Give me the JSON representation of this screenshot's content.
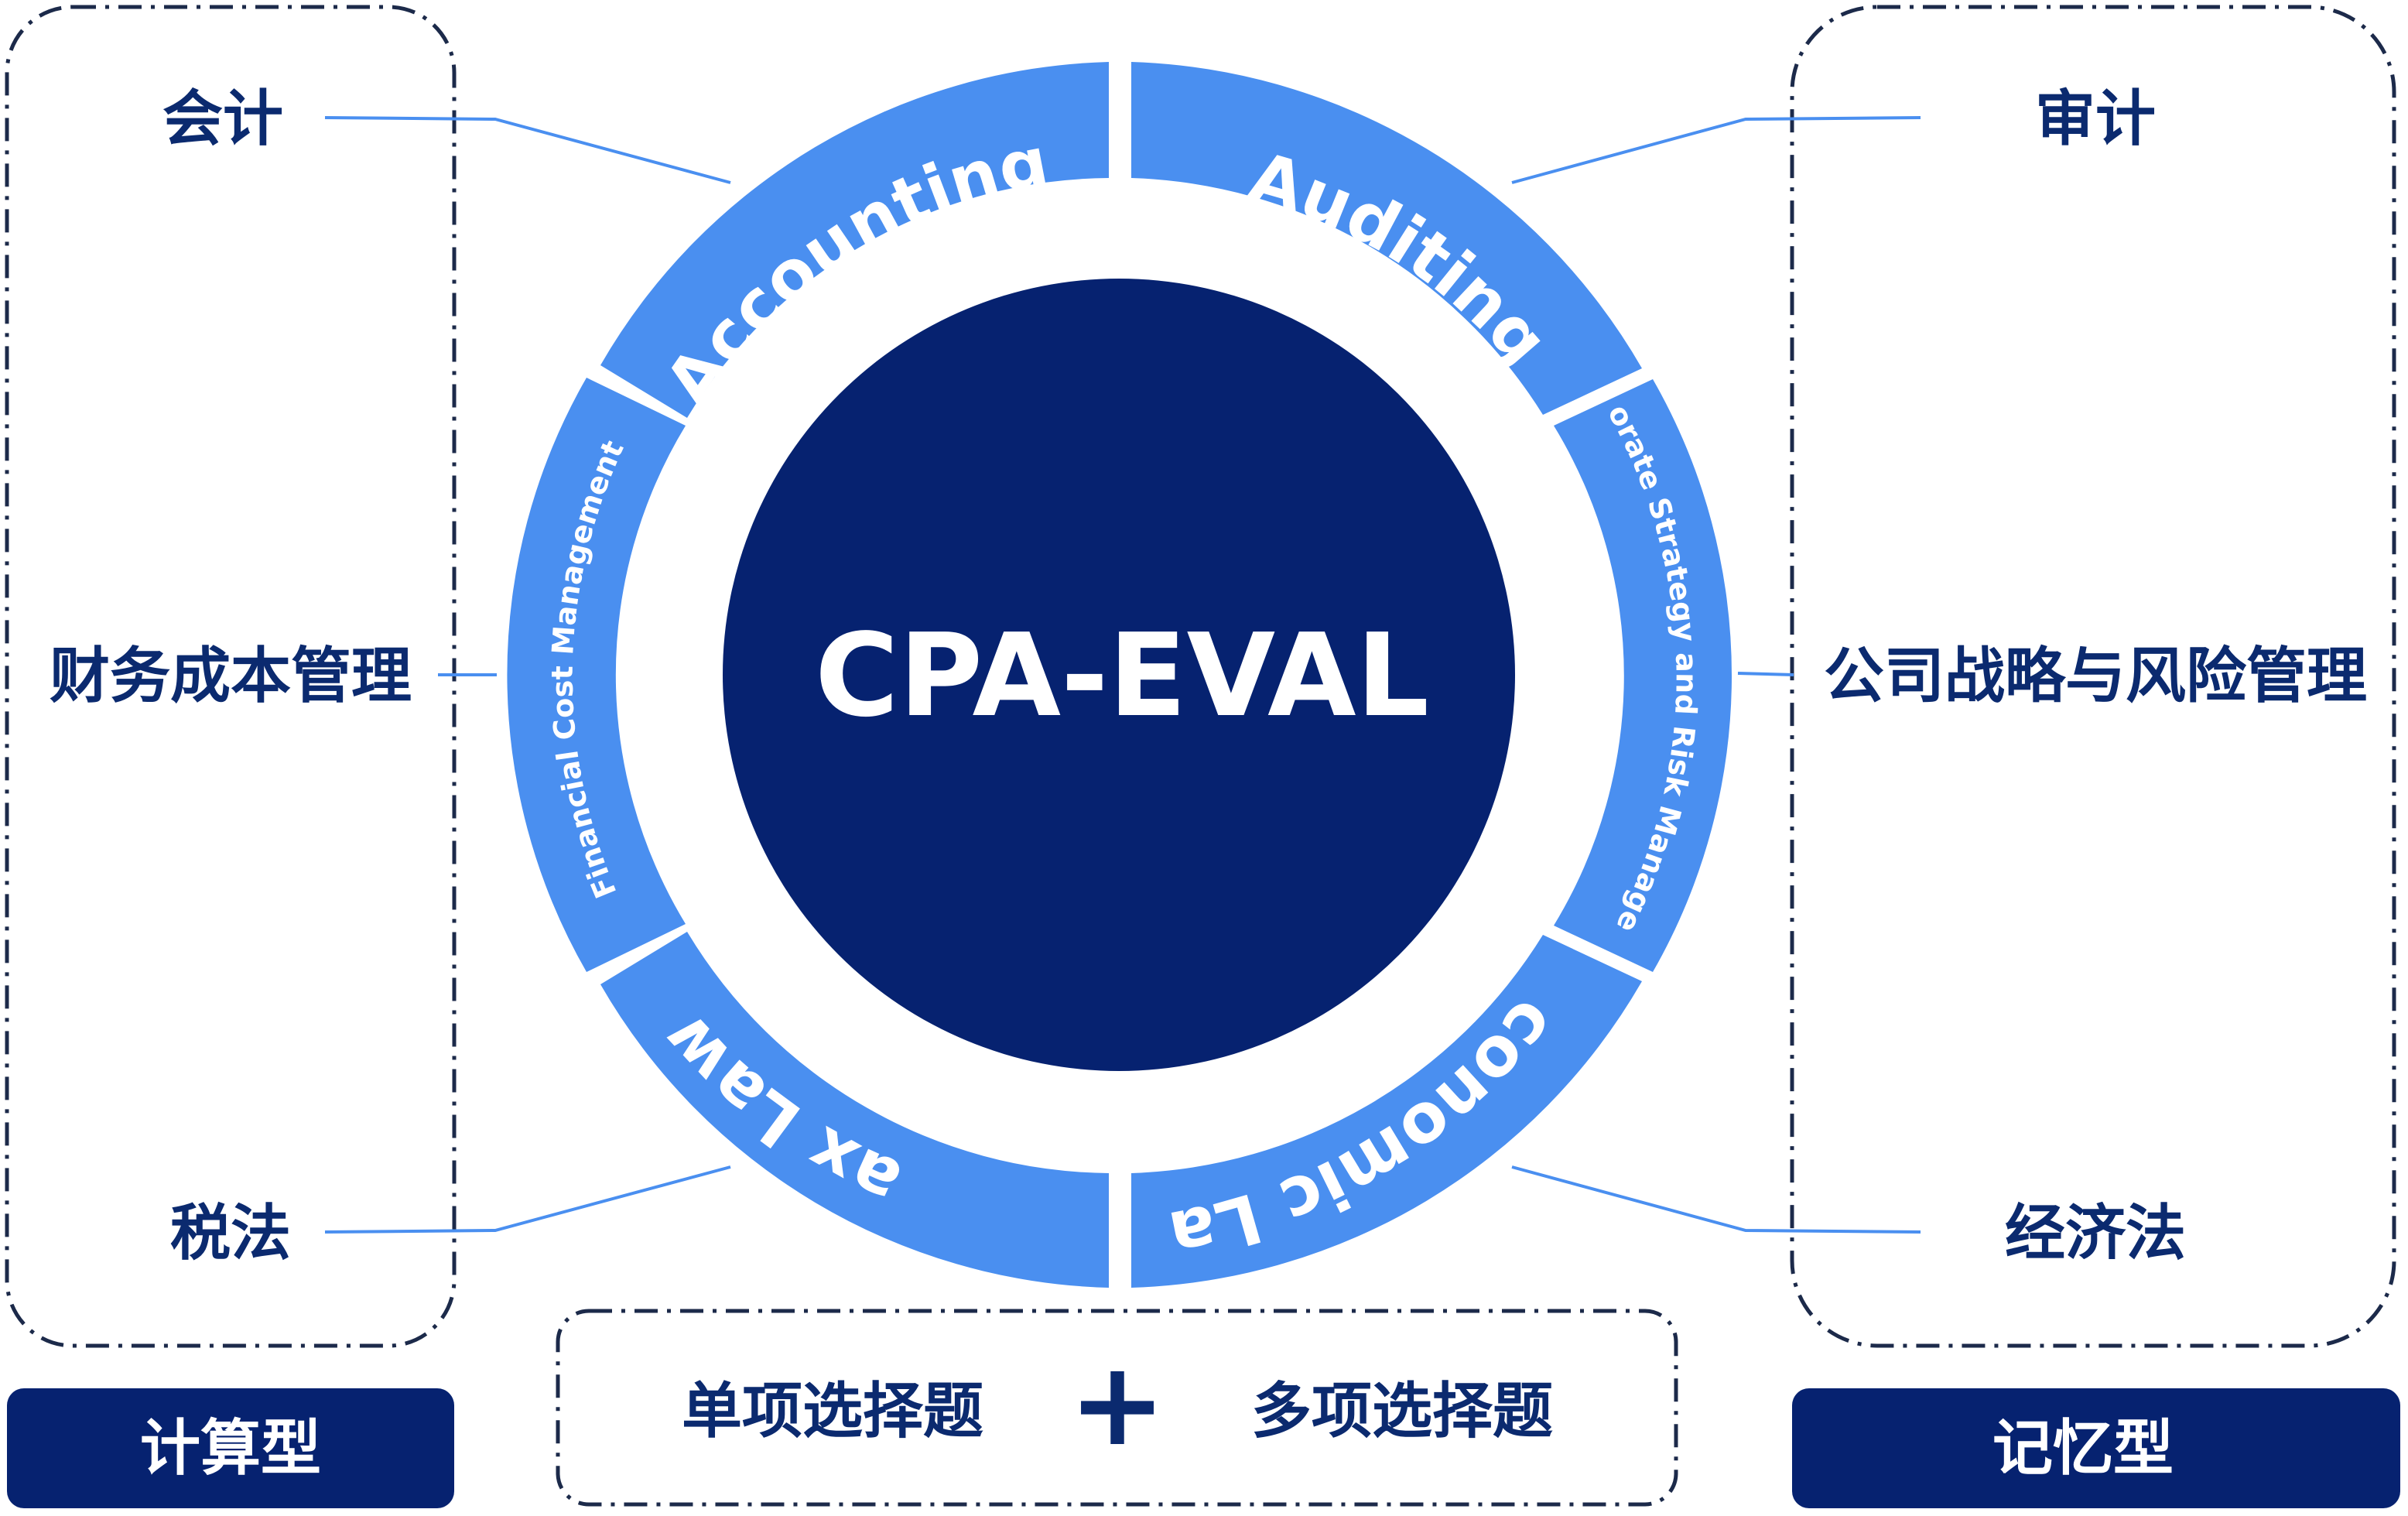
{
  "colors": {
    "navy": "#062270",
    "segment_blue": "#4a8ff0",
    "text_dark": "#0b2a6f",
    "dashed_border": "#1c2a4a",
    "connector": "#4a8ff0"
  },
  "center": {
    "title": "CPA-EVAL"
  },
  "segments": {
    "accounting": "Accounting",
    "auditing": "Auditing",
    "corporate_strategy": "Corporate Strategy and Risk Management",
    "economic_law": "Economic Law",
    "tax_law": "Tax Law",
    "financial_cost": "Financial Cost Management"
  },
  "left_group": {
    "items": [
      "会计",
      "财务成本管理",
      "税法"
    ],
    "type_label": "计算型"
  },
  "right_group": {
    "items": [
      "审计",
      "公司战略与风险管理",
      "经济法"
    ],
    "type_label": "记忆型"
  },
  "bottom": {
    "single_choice": "单项选择题",
    "plus": "+",
    "multiple_choice": "多项选择题"
  }
}
